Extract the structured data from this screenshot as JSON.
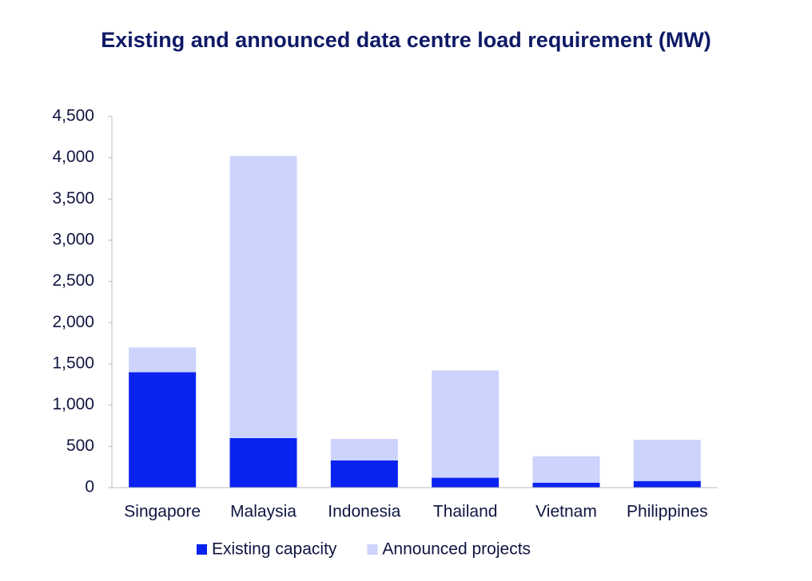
{
  "chart_data": {
    "type": "stacked_bar",
    "title": "Existing and announced data centre load requirement (MW)",
    "categories": [
      "Singapore",
      "Malaysia",
      "Indonesia",
      "Thailand",
      "Vietnam",
      "Philippines"
    ],
    "series": [
      {
        "name": "Existing capacity",
        "color": "#0a22f0",
        "values": [
          1400,
          600,
          330,
          120,
          60,
          80
        ]
      },
      {
        "name": "Announced projects",
        "color": "#ccd3fc",
        "values": [
          300,
          3420,
          260,
          1300,
          320,
          500
        ]
      }
    ],
    "ylim": [
      0,
      4500
    ],
    "yticks": [
      0,
      500,
      {
        "value": 1000,
        "label": "1,000"
      },
      {
        "value": 1500,
        "label": "1,500"
      },
      {
        "value": 2000,
        "label": "2,000"
      },
      {
        "value": 2500,
        "label": "2,500"
      },
      {
        "value": 3000,
        "label": "3,000"
      },
      {
        "value": 3500,
        "label": "3,500"
      },
      {
        "value": 4000,
        "label": "4,000"
      },
      {
        "value": 4500,
        "label": "4,500"
      }
    ],
    "grid": false,
    "legend": "bottom"
  }
}
